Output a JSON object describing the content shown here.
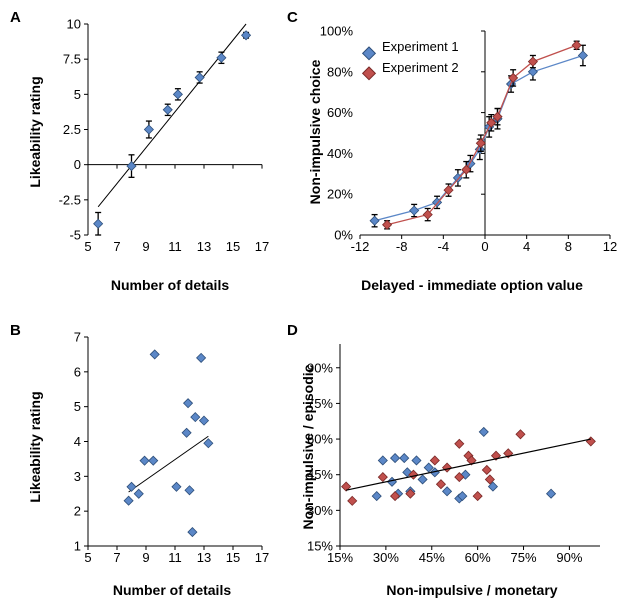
{
  "colors": {
    "blue": "#5b87c7",
    "blue_edge": "#2e4f7a",
    "red": "#c0504d",
    "red_edge": "#7a2a28",
    "axis": "#000000",
    "fit": "#000000"
  },
  "chart_data": [
    {
      "panel": "A",
      "type": "scatter",
      "xlabel": "Number of details",
      "ylabel": "Likeability rating",
      "xlim": [
        5,
        17
      ],
      "ylim": [
        -5,
        10
      ],
      "xticks": [
        5,
        7,
        9,
        11,
        13,
        15,
        17
      ],
      "xtick_labels": [
        "5",
        "7",
        "9",
        "11",
        "13",
        "15",
        "17"
      ],
      "yticks": [
        -5,
        -2.5,
        0,
        2.5,
        5,
        7.5,
        10
      ],
      "ytick_labels": [
        "-5",
        "-2.5",
        "0",
        "2.5",
        "5",
        "7.5",
        "10"
      ],
      "points": [
        {
          "x": 5.7,
          "y": -4.2,
          "err": 0.8
        },
        {
          "x": 8.0,
          "y": -0.1,
          "err": 0.8
        },
        {
          "x": 9.2,
          "y": 2.5,
          "err": 0.6
        },
        {
          "x": 10.5,
          "y": 3.9,
          "err": 0.4
        },
        {
          "x": 11.2,
          "y": 5.0,
          "err": 0.4
        },
        {
          "x": 12.7,
          "y": 6.2,
          "err": 0.4
        },
        {
          "x": 14.2,
          "y": 7.6,
          "err": 0.4
        },
        {
          "x": 15.9,
          "y": 9.2,
          "err": 0.2
        }
      ],
      "fit": {
        "x": [
          5.7,
          15.9
        ],
        "y": [
          -3.0,
          10.0
        ]
      }
    },
    {
      "panel": "B",
      "type": "scatter",
      "xlabel": "Number of details",
      "ylabel": "Likeability rating",
      "xlim": [
        5,
        17
      ],
      "ylim": [
        1,
        7
      ],
      "xticks": [
        5,
        7,
        9,
        11,
        13,
        15,
        17
      ],
      "xtick_labels": [
        "5",
        "7",
        "9",
        "11",
        "13",
        "15",
        "17"
      ],
      "yticks": [
        1,
        2,
        3,
        4,
        5,
        6,
        7
      ],
      "ytick_labels": [
        "1",
        "2",
        "3",
        "4",
        "5",
        "6",
        "7"
      ],
      "points": [
        {
          "x": 7.8,
          "y": 2.3
        },
        {
          "x": 8.0,
          "y": 2.7
        },
        {
          "x": 8.5,
          "y": 2.5
        },
        {
          "x": 8.9,
          "y": 3.45
        },
        {
          "x": 9.5,
          "y": 3.45
        },
        {
          "x": 9.6,
          "y": 6.5
        },
        {
          "x": 11.1,
          "y": 2.7
        },
        {
          "x": 11.8,
          "y": 4.25
        },
        {
          "x": 11.9,
          "y": 5.1
        },
        {
          "x": 12.0,
          "y": 2.6
        },
        {
          "x": 12.2,
          "y": 1.4
        },
        {
          "x": 12.4,
          "y": 4.7
        },
        {
          "x": 12.8,
          "y": 6.4
        },
        {
          "x": 13.0,
          "y": 4.6
        },
        {
          "x": 13.3,
          "y": 3.95
        }
      ],
      "fit": {
        "x": [
          7.8,
          13.3
        ],
        "y": [
          2.55,
          4.15
        ]
      }
    },
    {
      "panel": "C",
      "type": "line",
      "xlabel": "Delayed - immediate option value",
      "ylabel": "Non-impulsive choice",
      "xlim": [
        -12,
        12
      ],
      "ylim": [
        0,
        100
      ],
      "xticks": [
        -12,
        -8,
        -4,
        0,
        4,
        8,
        12
      ],
      "xtick_labels": [
        "-12",
        "-8",
        "-4",
        "0",
        "4",
        "8",
        "12"
      ],
      "yticks": [
        0,
        20,
        40,
        60,
        80,
        100
      ],
      "ytick_labels": [
        "0%",
        "20%",
        "40%",
        "60%",
        "80%",
        "100%"
      ],
      "legend": {
        "position": "top-left"
      },
      "series": [
        {
          "name": "Experiment 1",
          "color_key": "blue",
          "x": [
            -10.6,
            -6.8,
            -4.6,
            -2.6,
            -1.4,
            -0.5,
            0.4,
            1.2,
            2.5,
            4.6,
            9.4
          ],
          "y": [
            7,
            12,
            16,
            28,
            35,
            42,
            53,
            57,
            74,
            80,
            88
          ],
          "err": [
            3,
            3,
            3,
            4,
            4,
            5,
            5,
            5,
            4,
            4,
            5
          ]
        },
        {
          "name": "Experiment 2",
          "color_key": "red",
          "x": [
            -9.4,
            -5.5,
            -3.5,
            -1.8,
            -0.4,
            0.6,
            1.2,
            2.7,
            4.6,
            8.8
          ],
          "y": [
            5,
            10,
            22,
            32,
            45,
            55,
            58,
            77,
            85,
            93
          ],
          "err": [
            2,
            3,
            3,
            4,
            4,
            4,
            4,
            4,
            3,
            2
          ]
        }
      ]
    },
    {
      "panel": "D",
      "type": "scatter",
      "xlabel": "Non-impulsive / monetary",
      "ylabel": "Non-impulsive / episodic",
      "xlim": [
        15,
        100
      ],
      "ylim": [
        15,
        100
      ],
      "xticks": [
        15,
        30,
        45,
        60,
        75,
        90
      ],
      "xtick_labels": [
        "15%",
        "30%",
        "45%",
        "60%",
        "75%",
        "90%"
      ],
      "yticks": [
        15,
        30,
        45,
        60,
        75,
        90
      ],
      "ytick_labels": [
        "15%",
        "30%",
        "45%",
        "60%",
        "75%",
        "90%"
      ],
      "series": [
        {
          "color_key": "blue",
          "x": [
            27,
            29,
            32,
            33,
            34,
            36,
            37,
            38,
            40,
            42,
            44,
            46,
            50,
            54,
            55,
            56,
            62,
            65,
            84
          ],
          "y": [
            36,
            51,
            42,
            52,
            37,
            52,
            46,
            38,
            51,
            43,
            48,
            46,
            38,
            35,
            36,
            45,
            63,
            40,
            37
          ],
          "err": []
        },
        {
          "color_key": "red",
          "x": [
            17,
            19,
            29,
            33,
            38,
            39,
            46,
            48,
            50,
            54,
            54,
            57,
            58,
            60,
            63,
            64,
            66,
            70,
            74,
            97
          ],
          "y": [
            40,
            34,
            44,
            36,
            37,
            45,
            51,
            41,
            48,
            58,
            44,
            53,
            51,
            36,
            47,
            43,
            53,
            54,
            62,
            59
          ],
          "err": []
        }
      ],
      "fit": {
        "x": [
          17,
          97
        ],
        "y": [
          38.5,
          60.0
        ]
      }
    }
  ],
  "panels": {
    "A": {
      "letter": "A"
    },
    "B": {
      "letter": "B"
    },
    "C": {
      "letter": "C"
    },
    "D": {
      "letter": "D"
    }
  }
}
